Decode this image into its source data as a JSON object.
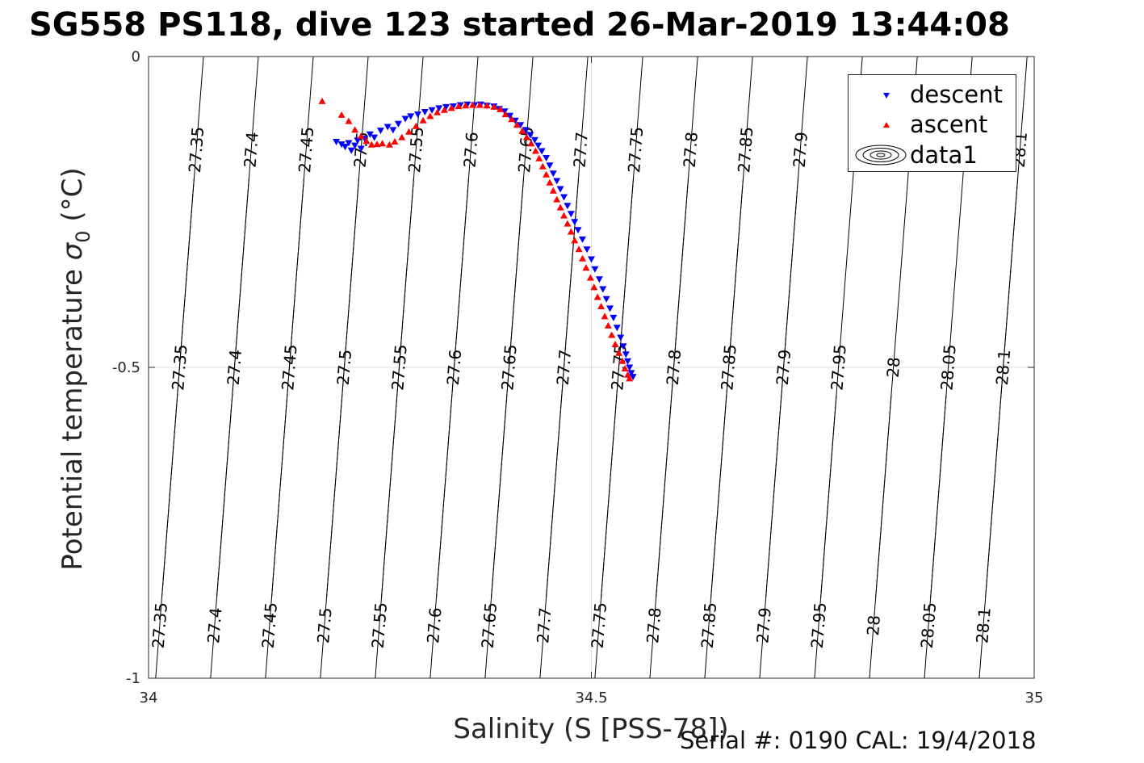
{
  "title": "SG558 PS118, dive 123 started 26-Mar-2019 13:44:08",
  "footer": "Serial #: 0190  CAL: 19/4/2018",
  "colors": {
    "descent": "#0000ff",
    "ascent": "#ff0000",
    "contour": "#000000",
    "grid": "#dcdcdc"
  },
  "chart_data": {
    "type": "scatter",
    "xlabel": "Salinity (S [PSS-78])",
    "ylabel_prefix": "Potential temperature ",
    "ylabel_symbol": "σ",
    "ylabel_sub": "0",
    "ylabel_suffix": " (°C)",
    "xlim": [
      34,
      35
    ],
    "ylim": [
      -1,
      0
    ],
    "xticks": [
      34,
      34.5,
      35
    ],
    "xtick_labels": [
      "34",
      "34.5",
      "35"
    ],
    "yticks": [
      0,
      -0.5,
      -1
    ],
    "ytick_labels": [
      "0",
      "-0.5",
      "-1"
    ],
    "grid": true,
    "legend": {
      "position": "top-right",
      "entries": [
        {
          "label": "descent",
          "marker": "triangle-down",
          "icon": "triangle-down-icon"
        },
        {
          "label": "ascent",
          "marker": "triangle-up",
          "icon": "triangle-up-icon"
        },
        {
          "label": "data1",
          "marker": "contour",
          "icon": "contour-ellipses-icon"
        }
      ]
    },
    "contours": {
      "levels": [
        27.35,
        27.4,
        27.45,
        27.5,
        27.55,
        27.6,
        27.65,
        27.7,
        27.75,
        27.8,
        27.85,
        27.9,
        27.95,
        28,
        28.05,
        28.1
      ],
      "labels_top": [
        "27.35",
        "27.4",
        "27.45",
        "27.5",
        "27.55",
        "27.6",
        "27.65",
        "27.7",
        "27.75",
        "27.8",
        "27.85",
        "27.9",
        "",
        "",
        "",
        "28.1"
      ],
      "labels_mid": [
        "27.35",
        "27.4",
        "27.45",
        "27.5",
        "27.55",
        "27.6",
        "27.65",
        "27.7",
        "27.75",
        "27.8",
        "27.85",
        "27.9",
        "27.95",
        "28",
        "28.05",
        "28.1"
      ],
      "labels_bottom": [
        "27.35",
        "27.4",
        "27.45",
        "27.5",
        "27.55",
        "27.6",
        "27.65",
        "27.7",
        "27.75",
        "27.8",
        "27.85",
        "27.9",
        "27.95",
        "28",
        "28.05",
        "28.1"
      ],
      "salinity_at_top": [
        34.062,
        34.124,
        34.186,
        34.248,
        34.31,
        34.372,
        34.434,
        34.496,
        34.558,
        34.62,
        34.682,
        34.744,
        34.806,
        34.868,
        34.93,
        34.992
      ],
      "salinity_at_bottom": [
        34.008,
        34.07,
        34.132,
        34.194,
        34.256,
        34.318,
        34.38,
        34.442,
        34.504,
        34.566,
        34.628,
        34.69,
        34.752,
        34.814,
        34.876,
        34.938
      ]
    },
    "series": [
      {
        "name": "descent",
        "marker": "triangle-down",
        "color": "#0000ff",
        "points": [
          [
            34.212,
            -0.137
          ],
          [
            34.218,
            -0.141
          ],
          [
            34.222,
            -0.145
          ],
          [
            34.226,
            -0.139
          ],
          [
            34.229,
            -0.151
          ],
          [
            34.233,
            -0.143
          ],
          [
            34.236,
            -0.135
          ],
          [
            34.24,
            -0.148
          ],
          [
            34.244,
            -0.132
          ],
          [
            34.25,
            -0.125
          ],
          [
            34.255,
            -0.13
          ],
          [
            34.262,
            -0.119
          ],
          [
            34.27,
            -0.113
          ],
          [
            34.276,
            -0.118
          ],
          [
            34.282,
            -0.108
          ],
          [
            34.29,
            -0.1
          ],
          [
            34.296,
            -0.096
          ],
          [
            34.304,
            -0.093
          ],
          [
            34.312,
            -0.089
          ],
          [
            34.32,
            -0.086
          ],
          [
            34.328,
            -0.083
          ],
          [
            34.336,
            -0.081
          ],
          [
            34.344,
            -0.08
          ],
          [
            34.352,
            -0.078
          ],
          [
            34.36,
            -0.077
          ],
          [
            34.368,
            -0.078
          ],
          [
            34.375,
            -0.077
          ],
          [
            34.382,
            -0.079
          ],
          [
            34.39,
            -0.08
          ],
          [
            34.396,
            -0.084
          ],
          [
            34.402,
            -0.088
          ],
          [
            34.408,
            -0.095
          ],
          [
            34.414,
            -0.103
          ],
          [
            34.42,
            -0.11
          ],
          [
            34.426,
            -0.118
          ],
          [
            34.431,
            -0.126
          ],
          [
            34.436,
            -0.134
          ],
          [
            34.44,
            -0.143
          ],
          [
            34.444,
            -0.152
          ],
          [
            34.449,
            -0.163
          ],
          [
            34.453,
            -0.175
          ],
          [
            34.457,
            -0.188
          ],
          [
            34.461,
            -0.2
          ],
          [
            34.465,
            -0.213
          ],
          [
            34.469,
            -0.226
          ],
          [
            34.473,
            -0.24
          ],
          [
            34.477,
            -0.253
          ],
          [
            34.481,
            -0.266
          ],
          [
            34.485,
            -0.279
          ],
          [
            34.49,
            -0.294
          ],
          [
            34.495,
            -0.31
          ],
          [
            34.5,
            -0.326
          ],
          [
            34.504,
            -0.342
          ],
          [
            34.509,
            -0.358
          ],
          [
            34.513,
            -0.374
          ],
          [
            34.517,
            -0.39
          ],
          [
            34.521,
            -0.405
          ],
          [
            34.525,
            -0.42
          ],
          [
            34.529,
            -0.436
          ],
          [
            34.533,
            -0.452
          ],
          [
            34.536,
            -0.466
          ],
          [
            34.539,
            -0.479
          ],
          [
            34.541,
            -0.49
          ],
          [
            34.543,
            -0.5
          ],
          [
            34.545,
            -0.509
          ],
          [
            34.547,
            -0.515
          ]
        ]
      },
      {
        "name": "ascent",
        "marker": "triangle-up",
        "color": "#ff0000",
        "points": [
          [
            34.196,
            -0.072
          ],
          [
            34.218,
            -0.094
          ],
          [
            34.226,
            -0.104
          ],
          [
            34.233,
            -0.118
          ],
          [
            34.24,
            -0.128
          ],
          [
            34.246,
            -0.136
          ],
          [
            34.252,
            -0.142
          ],
          [
            34.258,
            -0.141
          ],
          [
            34.264,
            -0.14
          ],
          [
            34.272,
            -0.142
          ],
          [
            34.278,
            -0.137
          ],
          [
            34.286,
            -0.13
          ],
          [
            34.294,
            -0.121
          ],
          [
            34.302,
            -0.112
          ],
          [
            34.31,
            -0.103
          ],
          [
            34.318,
            -0.096
          ],
          [
            34.326,
            -0.09
          ],
          [
            34.334,
            -0.086
          ],
          [
            34.342,
            -0.083
          ],
          [
            34.35,
            -0.08
          ],
          [
            34.358,
            -0.079
          ],
          [
            34.366,
            -0.078
          ],
          [
            34.374,
            -0.078
          ],
          [
            34.382,
            -0.079
          ],
          [
            34.39,
            -0.081
          ],
          [
            34.397,
            -0.085
          ],
          [
            34.403,
            -0.093
          ],
          [
            34.41,
            -0.101
          ],
          [
            34.416,
            -0.11
          ],
          [
            34.422,
            -0.12
          ],
          [
            34.427,
            -0.13
          ],
          [
            34.432,
            -0.14
          ],
          [
            34.437,
            -0.152
          ],
          [
            34.441,
            -0.164
          ],
          [
            34.445,
            -0.177
          ],
          [
            34.449,
            -0.19
          ],
          [
            34.453,
            -0.203
          ],
          [
            34.457,
            -0.216
          ],
          [
            34.461,
            -0.23
          ],
          [
            34.465,
            -0.243
          ],
          [
            34.469,
            -0.256
          ],
          [
            34.473,
            -0.269
          ],
          [
            34.477,
            -0.282
          ],
          [
            34.481,
            -0.296
          ],
          [
            34.486,
            -0.31
          ],
          [
            34.49,
            -0.325
          ],
          [
            34.494,
            -0.34
          ],
          [
            34.499,
            -0.356
          ],
          [
            34.503,
            -0.371
          ],
          [
            34.507,
            -0.387
          ],
          [
            34.511,
            -0.402
          ],
          [
            34.515,
            -0.418
          ],
          [
            34.519,
            -0.433
          ],
          [
            34.523,
            -0.448
          ],
          [
            34.527,
            -0.463
          ],
          [
            34.531,
            -0.477
          ],
          [
            34.535,
            -0.49
          ],
          [
            34.538,
            -0.502
          ],
          [
            34.541,
            -0.512
          ],
          [
            34.543,
            -0.518
          ]
        ]
      }
    ]
  }
}
